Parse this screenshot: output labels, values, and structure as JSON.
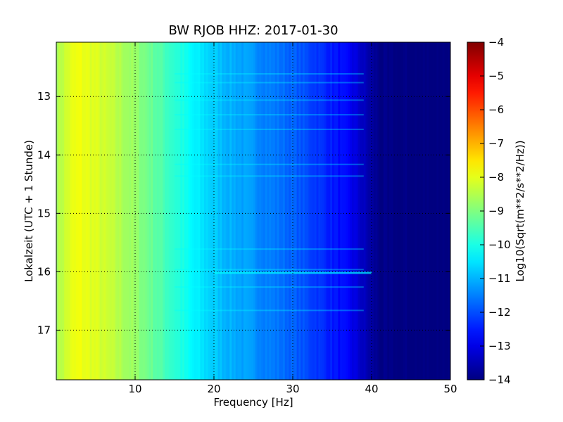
{
  "chart_data": {
    "type": "heatmap",
    "title": "BW RJOB HHZ: 2017-01-30",
    "xlabel": "Frequency [Hz]",
    "ylabel": "Lokalzeit (UTC + 1 Stunde)",
    "xlim": [
      0,
      50
    ],
    "ylim": [
      12.07,
      17.85
    ],
    "y_inverted": true,
    "x_ticks": [
      10,
      20,
      30,
      40,
      50
    ],
    "x_tick_labels": [
      "10",
      "20",
      "30",
      "40",
      "50"
    ],
    "y_ticks": [
      13,
      14,
      15,
      16,
      17
    ],
    "y_tick_labels": [
      "13",
      "14",
      "15",
      "16",
      "17"
    ],
    "grid": true,
    "colormap": "jet",
    "colorbar": {
      "label": "Log10(Sqrt(m**2/s**2/Hz))",
      "range": [
        -14,
        -4
      ],
      "ticks": [
        -4,
        -5,
        -6,
        -7,
        -8,
        -9,
        -10,
        -11,
        -12,
        -13,
        -14
      ],
      "tick_labels": [
        "−4",
        "−5",
        "−6",
        "−7",
        "−8",
        "−9",
        "−10",
        "−11",
        "−12",
        "−13",
        "−14"
      ]
    },
    "spectrum_profile": {
      "frequency_hz": [
        0,
        1,
        2,
        3,
        5,
        8,
        10,
        12,
        14,
        16,
        17,
        19,
        21,
        24,
        27,
        30,
        33,
        35,
        37,
        38,
        39,
        40,
        41,
        42,
        50
      ],
      "level": [
        -8.6,
        -8.3,
        -8.0,
        -7.9,
        -8.1,
        -8.5,
        -8.8,
        -9.2,
        -9.6,
        -10.0,
        -10.3,
        -10.6,
        -10.9,
        -11.2,
        -11.5,
        -11.8,
        -12.2,
        -12.5,
        -12.8,
        -13.1,
        -13.4,
        -13.7,
        -13.9,
        -14.0,
        -14.0
      ]
    },
    "bright_bands_hour": [
      12.6,
      12.75,
      13.05,
      13.3,
      13.55,
      14.15,
      14.35,
      15.6,
      15.95,
      16.25,
      16.65
    ],
    "strong_band_hour": 16.0
  }
}
